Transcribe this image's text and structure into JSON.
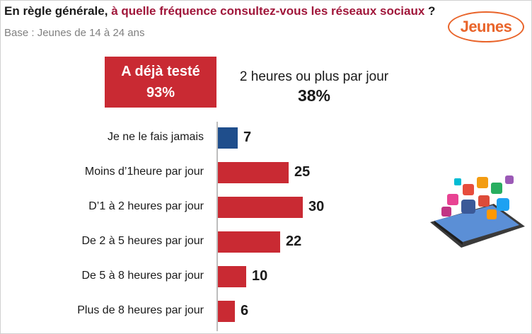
{
  "title": {
    "prefix": "En règle générale, ",
    "accent": "à quelle fréquence consultez-vous les réseaux sociaux",
    "suffix": " ?"
  },
  "base": "Base : Jeunes de 14 à 24 ans",
  "logo": "Jeunes",
  "highlight": {
    "line1": "A déjà testé",
    "line2": "93%"
  },
  "stat": {
    "label": "2 heures ou plus par jour",
    "value": "38%"
  },
  "colors": {
    "accent": "#a0163a",
    "bar_red": "#c92a33",
    "bar_blue": "#1f4e8c",
    "logo": "#e9642a"
  },
  "illustration": "smartphone-social-media-icons",
  "chart_data": {
    "type": "bar",
    "orientation": "horizontal",
    "categories": [
      "Je ne le fais jamais",
      "Moins d’1heure par jour",
      "D’1 à 2 heures par jour",
      "De 2 à 5 heures par jour",
      "De 5 à 8 heures par jour",
      "Plus de 8 heures par jour"
    ],
    "values": [
      7,
      25,
      30,
      22,
      10,
      6
    ],
    "bar_colors": [
      "#1f4e8c",
      "#c92a33",
      "#c92a33",
      "#c92a33",
      "#c92a33",
      "#c92a33"
    ],
    "data_labels": [
      "7",
      "25",
      "30",
      "22",
      "10",
      "6"
    ],
    "xlim": [
      0,
      30
    ],
    "grid": false,
    "legend": "none"
  }
}
